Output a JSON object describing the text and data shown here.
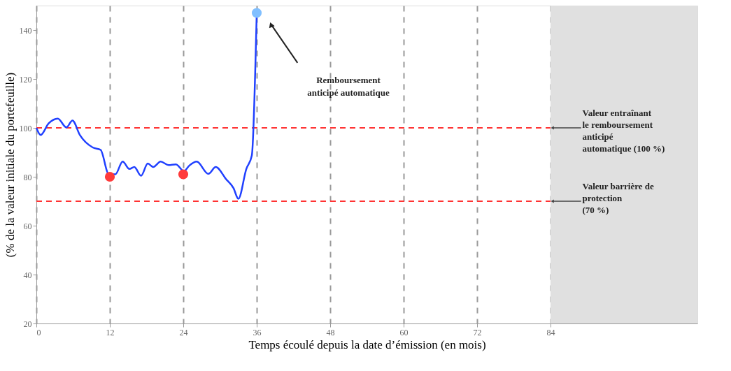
{
  "chart_data": {
    "type": "line",
    "xlabel": "Temps écoulé depuis la date d’émission (en mois)",
    "ylabel": "(% de la valeur initiale du portefeuille)",
    "xlim": [
      0,
      108
    ],
    "xticks": [
      0,
      12,
      24,
      36,
      48,
      60,
      72,
      84
    ],
    "ylim": [
      20,
      150
    ],
    "yticks": [
      20,
      40,
      60,
      80,
      100,
      120,
      140
    ],
    "grid": "x",
    "series": [
      {
        "color": "#2040ff",
        "x": [
          0,
          0.7,
          2.0,
          3.5,
          4.9,
          5.9,
          7.1,
          9.2,
          10.5,
          11.8,
          12.9,
          14.1,
          15.2,
          16.0,
          17.1,
          18.2,
          19.1,
          20.3,
          21.6,
          22.8,
          24.1,
          25.0,
          26.2,
          28.1,
          29.3,
          31.0,
          32.2,
          33.0,
          34.3,
          35.2,
          36.0
        ],
        "values": [
          100,
          97.1,
          101.8,
          103.8,
          100.2,
          103,
          97.1,
          92,
          91,
          81.2,
          81,
          86.2,
          83.2,
          84,
          80.4,
          85.4,
          84,
          86.2,
          84.8,
          85.1,
          82.3,
          84.6,
          86.2,
          81.2,
          84,
          79,
          75.4,
          71,
          83.2,
          88.7,
          147
        ]
      },
      {
        "type": "scatter",
        "color": "#ff3b3b",
        "marker": "circle",
        "x": [
          12,
          24
        ],
        "values": [
          80,
          81
        ]
      },
      {
        "type": "scatter",
        "color": "#80bfff",
        "marker": "circle",
        "x": [
          36
        ],
        "values": [
          147
        ]
      }
    ],
    "ref_lines": [
      {
        "axis": "y",
        "value": 100,
        "label": "Valeur entraînant\nle remboursement\nanticipé\nautomatique (100 %)",
        "color": "#ff3333",
        "line_style": "dashed"
      },
      {
        "axis": "y",
        "value": 70,
        "label": "Valeur barrière de\nprotection\n(70 %)",
        "color": "#ff3333",
        "line_style": "dashed"
      }
    ],
    "bands": [
      {
        "axis": "x",
        "from": 84,
        "to": 108,
        "color": "#e0e0e0"
      }
    ],
    "annotations": [
      "Remboursement\nanticipé automatique"
    ]
  }
}
